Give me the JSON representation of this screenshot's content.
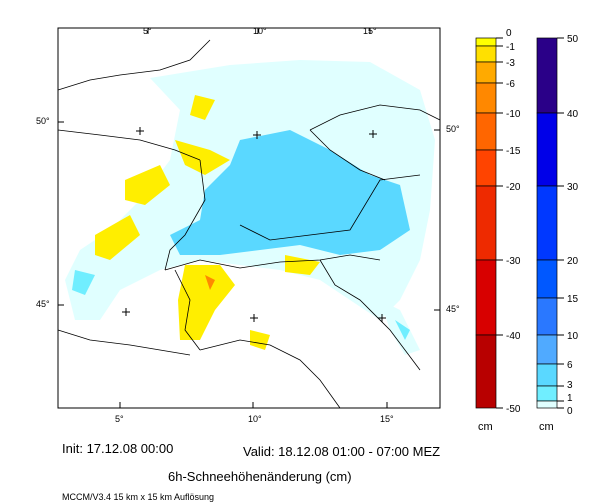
{
  "map": {
    "lon_ticks_top": [
      "5°",
      "10°",
      "15°"
    ],
    "lon_ticks_bottom": [
      "5°",
      "10°",
      "15°"
    ],
    "lat_ticks_left": [
      "50°",
      "45°"
    ],
    "lat_ticks_right": [
      "50°",
      "45°"
    ]
  },
  "legend_negative": {
    "unit": "cm",
    "levels": [
      0,
      -1,
      -3,
      -6,
      -10,
      -15,
      -20,
      -30,
      -40,
      -50
    ],
    "colors": [
      "#ffff00",
      "#ffe000",
      "#ffaa00",
      "#ff8800",
      "#ff6600",
      "#ff4400",
      "#ee2a00",
      "#d80000",
      "#b80000"
    ]
  },
  "legend_positive": {
    "unit": "cm",
    "levels": [
      50,
      40,
      30,
      20,
      15,
      10,
      6,
      3,
      1,
      0
    ],
    "colors": [
      "#2a0088",
      "#0000e8",
      "#0038ff",
      "#0058ff",
      "#2a78ff",
      "#50aaff",
      "#5ad8ff",
      "#70eeff",
      "#e0ffff"
    ]
  },
  "footer": {
    "init": "Init: 17.12.08 00:00",
    "valid": "Valid: 18.12.08 01:00 - 07:00 MEZ",
    "title": "6h-Schneehöhenänderung (cm)",
    "model": "MCCM/V3.4 15 km x 15 km Auflösung"
  }
}
